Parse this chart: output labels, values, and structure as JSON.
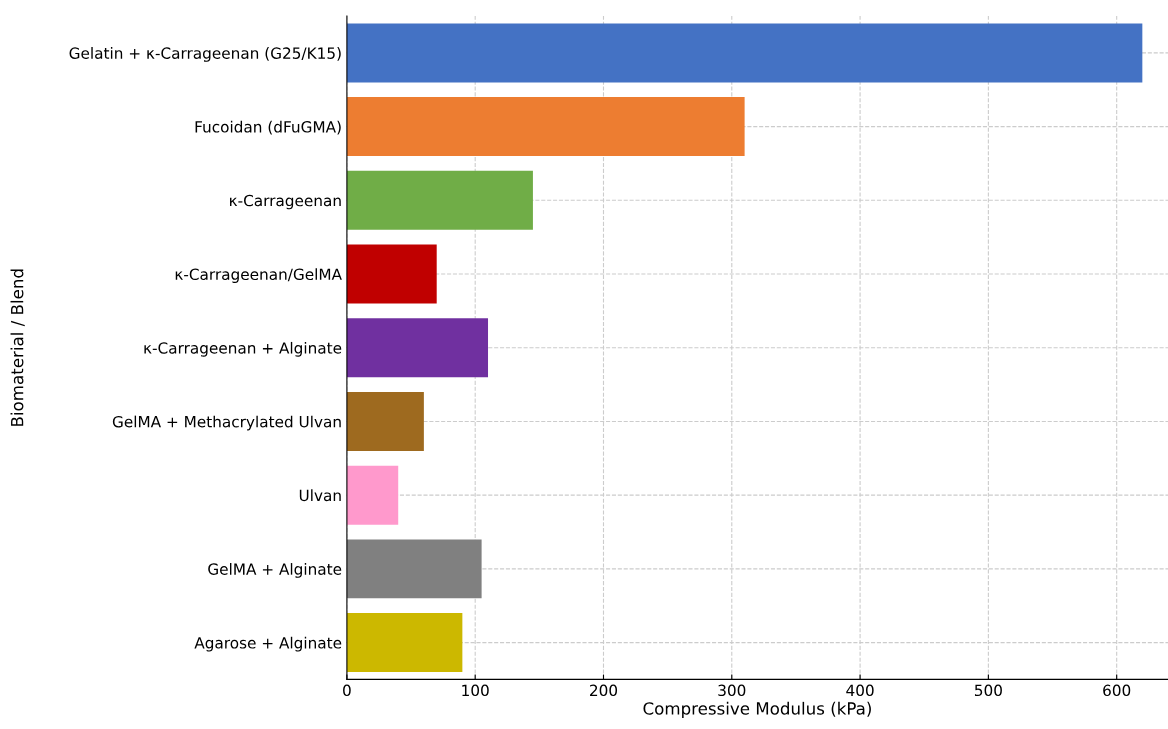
{
  "chart_data": {
    "type": "bar",
    "orientation": "horizontal",
    "xlabel": "Compressive Modulus (kPa)",
    "ylabel": "Biomaterial / Blend",
    "categories": [
      "Gelatin + κ-Carrageenan (G25/K15)",
      "Fucoidan (dFuGMA)",
      "κ-Carrageenan",
      "κ-Carrageenan/GelMA",
      "κ-Carrageenan + Alginate",
      "GelMA + Methacrylated Ulvan",
      "Ulvan",
      "GelMA + Alginate",
      "Agarose + Alginate"
    ],
    "values": [
      620,
      310,
      145,
      70,
      110,
      60,
      40,
      105,
      90
    ],
    "colors": [
      "#4472c4",
      "#ed7d31",
      "#70ad47",
      "#c00000",
      "#7030a0",
      "#9e6a1f",
      "#ff99cc",
      "#808080",
      "#ccb800"
    ],
    "xlim": [
      0,
      640
    ],
    "xticks": [
      0,
      100,
      200,
      300,
      400,
      500,
      600
    ],
    "grid": true
  }
}
